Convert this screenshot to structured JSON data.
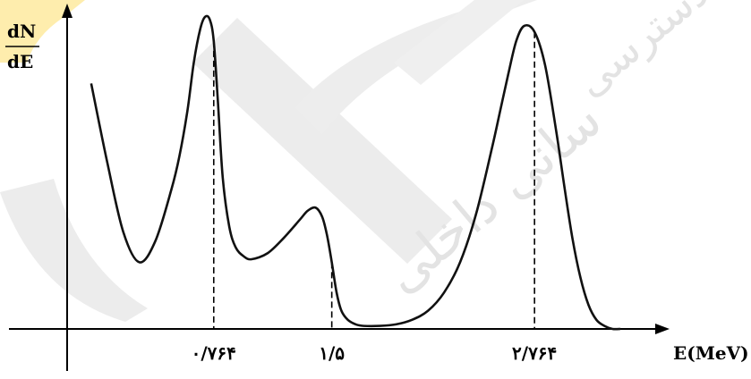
{
  "chart_data": {
    "type": "line",
    "title": "",
    "xlabel": "E(MeV)",
    "ylabel_numerator": "dN",
    "ylabel_denominator": "dE",
    "x_tick_labels": [
      {
        "label": "۰/۷۶۴",
        "value": 0.764
      },
      {
        "label": "۱/۵",
        "value": 1.5
      },
      {
        "label": "۲/۷۶۴",
        "value": 2.764
      }
    ],
    "xlim": [
      -0.15,
      3.55
    ],
    "ylim": [
      0,
      1.05
    ],
    "grid": false,
    "legend": "none",
    "series": [
      {
        "x": [
          0.0,
          0.1,
          0.2,
          0.3,
          0.4,
          0.5,
          0.55,
          0.6,
          0.64,
          0.68,
          0.71,
          0.74,
          0.764,
          0.79,
          0.82,
          0.86,
          0.9,
          0.95,
          1.0,
          1.1,
          1.2,
          1.3,
          1.35,
          1.4,
          1.44,
          1.47,
          1.5,
          1.53,
          1.56,
          1.6,
          1.65,
          1.7,
          1.8,
          1.9,
          2.0,
          2.1,
          2.2,
          2.3,
          2.4,
          2.5,
          2.55,
          2.6,
          2.65,
          2.7,
          2.764,
          2.83,
          2.9,
          2.95,
          3.0,
          3.05,
          3.1,
          3.15,
          3.2,
          3.25,
          3.3
        ],
        "y": [
          0.81,
          0.55,
          0.32,
          0.22,
          0.29,
          0.46,
          0.57,
          0.72,
          0.88,
          0.99,
          1.03,
          1.02,
          0.95,
          0.75,
          0.5,
          0.34,
          0.27,
          0.24,
          0.23,
          0.25,
          0.3,
          0.36,
          0.39,
          0.4,
          0.37,
          0.31,
          0.22,
          0.12,
          0.06,
          0.03,
          0.015,
          0.01,
          0.01,
          0.015,
          0.03,
          0.06,
          0.12,
          0.22,
          0.38,
          0.6,
          0.72,
          0.84,
          0.95,
          1.0,
          0.98,
          0.87,
          0.65,
          0.47,
          0.3,
          0.17,
          0.08,
          0.03,
          0.01,
          0.0,
          0.0
        ]
      }
    ],
    "markers": [
      0.764,
      1.5,
      2.764
    ],
    "colors": {
      "curve": "#111111",
      "axis": "#000000",
      "dashed": "#000000"
    }
  },
  "watermark": {
    "text_top_right": "طراح دسترسی",
    "text_center": "سانی داخلی",
    "color": "#e3e3e3",
    "accent": "#fde58a"
  }
}
